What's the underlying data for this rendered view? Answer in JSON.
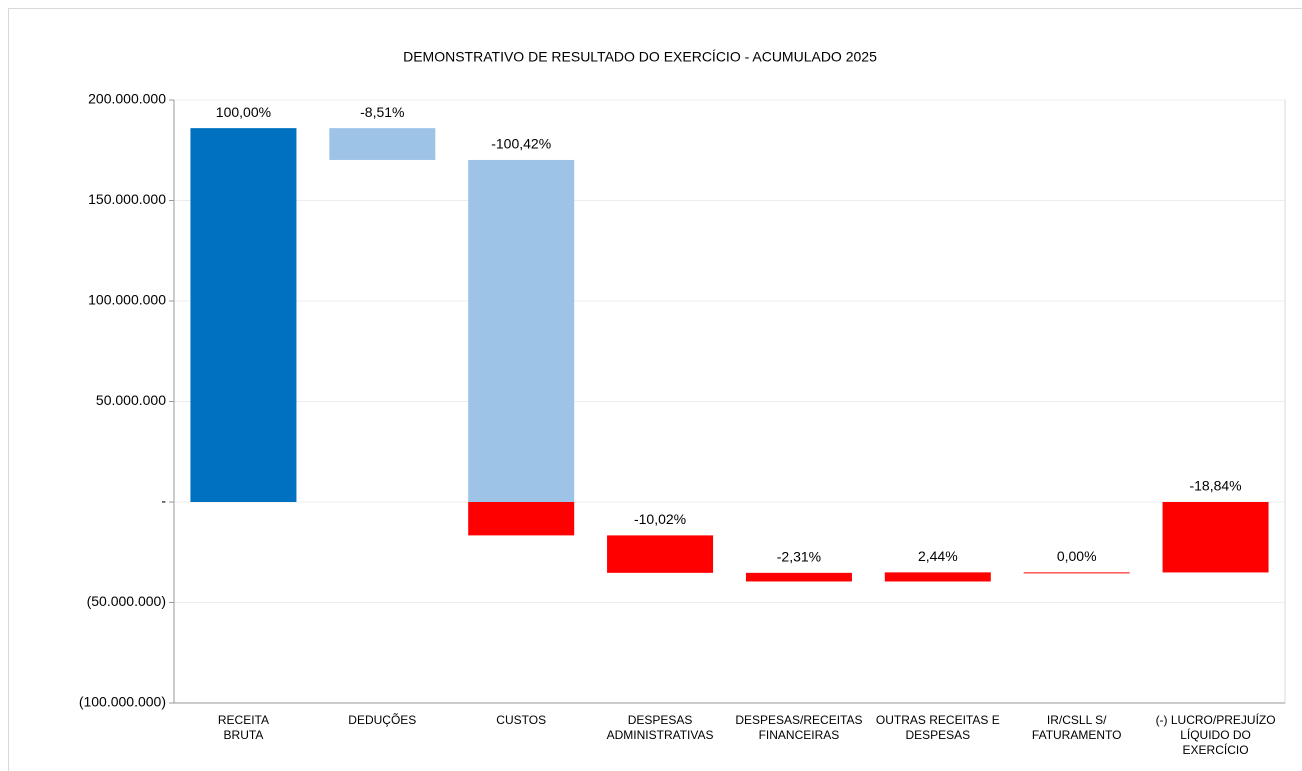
{
  "chart_data": {
    "type": "waterfall",
    "title": "DEMONSTRATIVO DE RESULTADO DO EXERCÍCIO - ACUMULADO 2025",
    "categories": [
      "RECEITA\nBRUTA",
      "DEDUÇÕES",
      "CUSTOS",
      "DESPESAS\nADMINISTRATIVAS",
      "DESPESAS/RECEITAS\nFINANCEIRAS",
      "OUTRAS RECEITAS E\nDESPESAS",
      "IR/CSLL S/\nFATURAMENTO",
      "(-) LUCRO/PREJUÍZO\nLÍQUIDO DO\nEXERCÍCIO"
    ],
    "values": [
      186000000,
      -15828600,
      -186781200,
      -18637200,
      -4296600,
      4538400,
      0,
      -35042400
    ],
    "value_labels": [
      "100,00%",
      "-8,51%",
      "-100,42%",
      "-10,02%",
      "-2,31%",
      "2,44%",
      "0,00%",
      "-18,84%"
    ],
    "totals": [
      true,
      false,
      false,
      false,
      false,
      false,
      false,
      true
    ],
    "total_color": "#0070c0",
    "above_zero_color": "#9dc3e6",
    "below_zero_color": "#ff0000",
    "ylim": [
      -100000000,
      200000000
    ],
    "yticks": [
      {
        "value": -100000000,
        "label": "(100.000.000)"
      },
      {
        "value": -50000000,
        "label": "(50.000.000)"
      },
      {
        "value": 0,
        "label": "-"
      },
      {
        "value": 50000000,
        "label": "50.000.000"
      },
      {
        "value": 100000000,
        "label": "100.000.000"
      },
      {
        "value": 150000000,
        "label": "150.000.000"
      },
      {
        "value": 200000000,
        "label": "200.000.000"
      }
    ],
    "grid": true
  }
}
